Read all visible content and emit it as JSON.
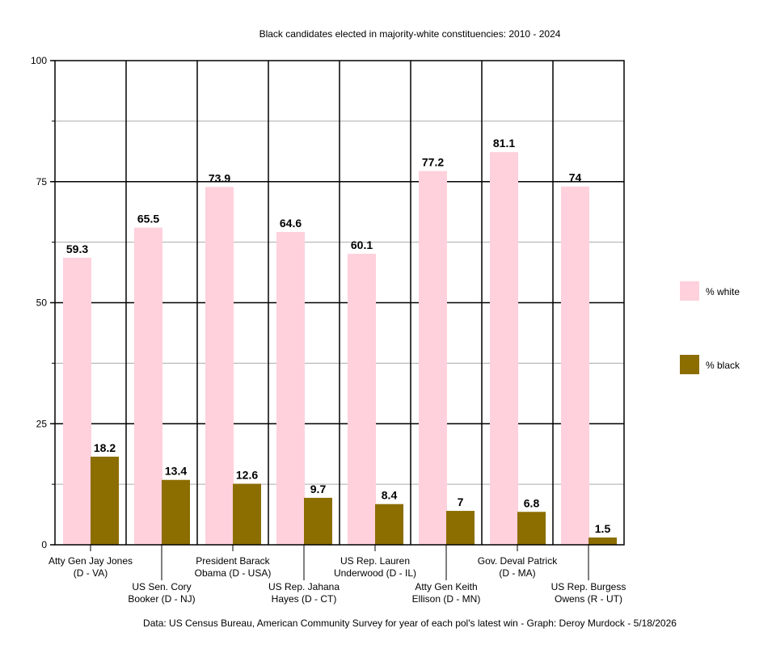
{
  "chart_data": {
    "type": "bar",
    "title": "Black candidates elected in majority-white constituencies: 2010 - 2024",
    "categories": [
      [
        "Atty Gen Jay Jones",
        "(D - VA)"
      ],
      [
        "US Sen. Cory",
        "Booker (D - NJ)"
      ],
      [
        "President Barack",
        "Obama (D - USA)"
      ],
      [
        "US Rep. Jahana",
        "Hayes (D - CT)"
      ],
      [
        "US Rep. Lauren",
        "Underwood (D - IL)"
      ],
      [
        "Atty Gen Keith",
        "Ellison (D - MN)"
      ],
      [
        "Gov. Deval Patrick",
        "(D - MA)"
      ],
      [
        "US Rep. Burgess",
        "Owens (R - UT)"
      ]
    ],
    "series": [
      {
        "name": "% white",
        "color": "#ffd1dc",
        "values": [
          59.3,
          65.5,
          73.9,
          64.6,
          60.1,
          77.2,
          81.1,
          74
        ],
        "labels": [
          "59.3",
          "65.5",
          "73.9",
          "64.6",
          "60.1",
          "77.2",
          "81.1",
          "74"
        ]
      },
      {
        "name": "% black",
        "color": "#8b6d00",
        "values": [
          18.2,
          13.4,
          12.6,
          9.7,
          8.4,
          7,
          6.8,
          1.5
        ],
        "labels": [
          "18.2",
          "13.4",
          "12.6",
          "9.7",
          "8.4",
          "7",
          "6.8",
          "1.5"
        ]
      }
    ],
    "ylim": [
      0,
      100
    ],
    "yticks": [
      "0",
      "25",
      "50",
      "75",
      "100"
    ],
    "grid": true,
    "legend_position": "right",
    "xlabel": "",
    "ylabel": ""
  },
  "source": "Data: US Census Bureau, American Community Survey for year of each pol's latest win - Graph: Deroy Murdock - 5/18/2026"
}
